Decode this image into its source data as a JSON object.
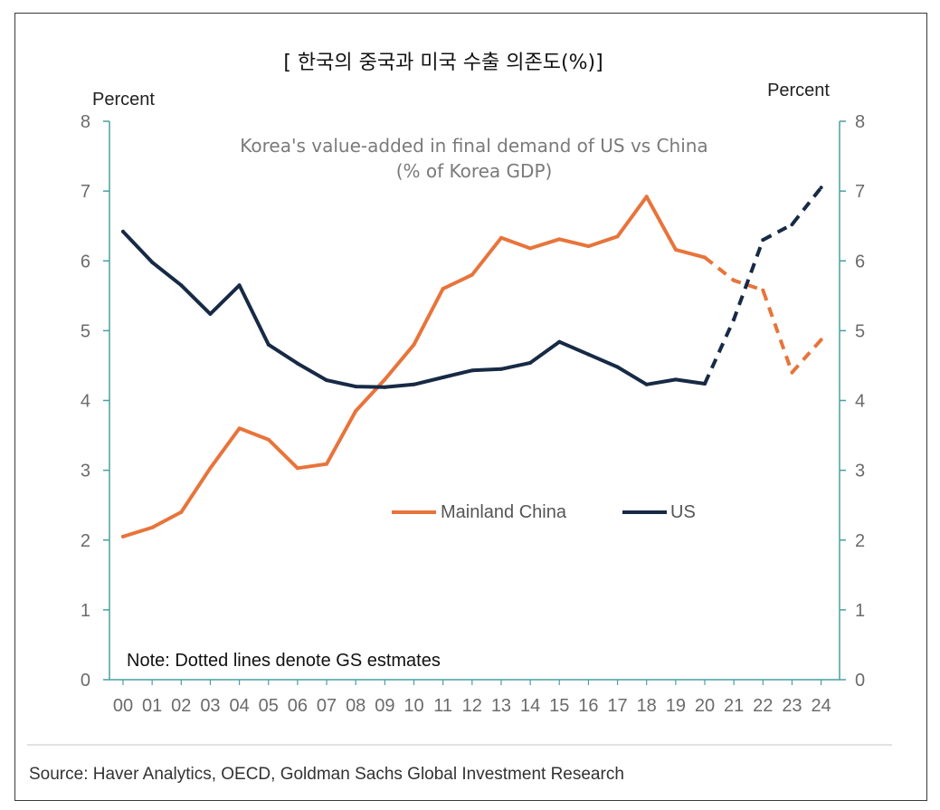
{
  "chart_data": {
    "type": "line",
    "title": "[ 한국의 중국과 미국 수출 의존도(%)]",
    "subtitle_line1": "Korea's value-added in final demand of US vs China",
    "subtitle_line2": "(% of Korea GDP)",
    "ylabel_left": "Percent",
    "ylabel_right": "Percent",
    "ylim": [
      0,
      8
    ],
    "yticks": [
      "0",
      "1",
      "2",
      "3",
      "4",
      "5",
      "6",
      "7",
      "8"
    ],
    "categories": [
      "00",
      "01",
      "02",
      "03",
      "04",
      "05",
      "06",
      "07",
      "08",
      "09",
      "10",
      "11",
      "12",
      "13",
      "14",
      "15",
      "16",
      "17",
      "18",
      "19",
      "20",
      "21",
      "22",
      "23",
      "24"
    ],
    "estimate_start_index": 20,
    "series": [
      {
        "name": "Mainland China",
        "color": "#e8743b",
        "values": [
          2.05,
          2.18,
          2.4,
          3.03,
          3.6,
          3.44,
          3.03,
          3.09,
          3.85,
          4.3,
          4.8,
          5.6,
          5.8,
          6.33,
          6.18,
          6.31,
          6.21,
          6.35,
          6.92,
          6.16,
          6.05,
          5.72,
          5.58,
          4.4,
          4.87
        ]
      },
      {
        "name": "US",
        "color": "#172a45",
        "values": [
          6.42,
          5.98,
          5.65,
          5.24,
          5.65,
          4.8,
          4.53,
          4.29,
          4.2,
          4.19,
          4.23,
          4.33,
          4.43,
          4.45,
          4.54,
          4.84,
          4.66,
          4.48,
          4.23,
          4.3,
          4.24,
          5.16,
          6.3,
          6.52,
          7.05
        ]
      }
    ],
    "note": "Note: Dotted lines denote GS estmates",
    "source": "Source: Haver Analytics, OECD, Goldman Sachs Global Investment Research",
    "legend_position": "center-right"
  }
}
